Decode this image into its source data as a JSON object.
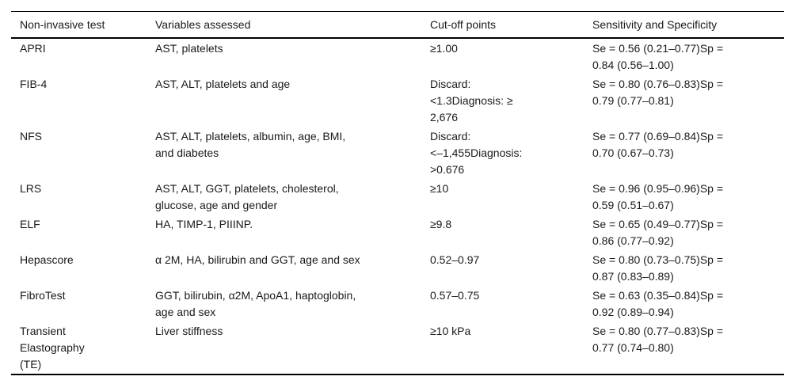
{
  "table": {
    "columns": [
      "Non-invasive test",
      "Variables assessed",
      "Cut-off points",
      "Sensitivity and Specificity"
    ],
    "rows": [
      {
        "test": [
          "APRI"
        ],
        "variables": [
          "AST, platelets"
        ],
        "cutoff": [
          "≥1.00"
        ],
        "sens_spec": [
          "Se = 0.56 (0.21–0.77)Sp =",
          "0.84 (0.56–1.00)"
        ]
      },
      {
        "test": [
          "FIB-4"
        ],
        "variables": [
          "AST, ALT, platelets and age"
        ],
        "cutoff": [
          "Discard:",
          "<1.3Diagnosis: ≥",
          "2,676"
        ],
        "sens_spec": [
          "Se = 0.80 (0.76–0.83)Sp =",
          "0.79 (0.77–0.81)"
        ]
      },
      {
        "test": [
          "NFS"
        ],
        "variables": [
          "AST, ALT, platelets, albumin, age, BMI,",
          "and diabetes"
        ],
        "cutoff": [
          "Discard:",
          "<–1,455Diagnosis:",
          ">0.676"
        ],
        "sens_spec": [
          "Se = 0.77 (0.69–0.84)Sp =",
          "0.70 (0.67–0.73)"
        ]
      },
      {
        "test": [
          "LRS"
        ],
        "variables": [
          "AST, ALT, GGT, platelets, cholesterol,",
          "glucose, age and gender"
        ],
        "cutoff": [
          "≥10"
        ],
        "sens_spec": [
          "Se = 0.96 (0.95–0.96)Sp =",
          "0.59 (0.51–0.67)"
        ]
      },
      {
        "test": [
          "ELF"
        ],
        "variables": [
          "HA, TIMP-1, PIIINP."
        ],
        "cutoff": [
          "≥9.8"
        ],
        "sens_spec": [
          "Se = 0.65 (0.49–0.77)Sp =",
          "0.86 (0.77–0.92)"
        ]
      },
      {
        "test": [
          "Hepascore"
        ],
        "variables": [
          "α 2M, HA, bilirubin and GGT, age and sex"
        ],
        "cutoff": [
          "0.52–0.97"
        ],
        "sens_spec": [
          "Se = 0.80 (0.73–0.75)Sp =",
          "0.87 (0.83–0.89)"
        ]
      },
      {
        "test": [
          "FibroTest"
        ],
        "variables": [
          "GGT, bilirubin, α2M, ApoA1, haptoglobin,",
          "age and sex"
        ],
        "cutoff": [
          "0.57–0.75"
        ],
        "sens_spec": [
          "Se = 0.63 (0.35–0.84)Sp =",
          "0.92 (0.89–0.94)"
        ]
      },
      {
        "test": [
          "Transient",
          "Elastography",
          "(TE)"
        ],
        "variables": [
          "Liver stiffness"
        ],
        "cutoff": [
          "≥10 kPa"
        ],
        "sens_spec": [
          "Se = 0.80 (0.77–0.83)Sp =",
          "0.77 (0.74–0.80)"
        ]
      }
    ]
  }
}
